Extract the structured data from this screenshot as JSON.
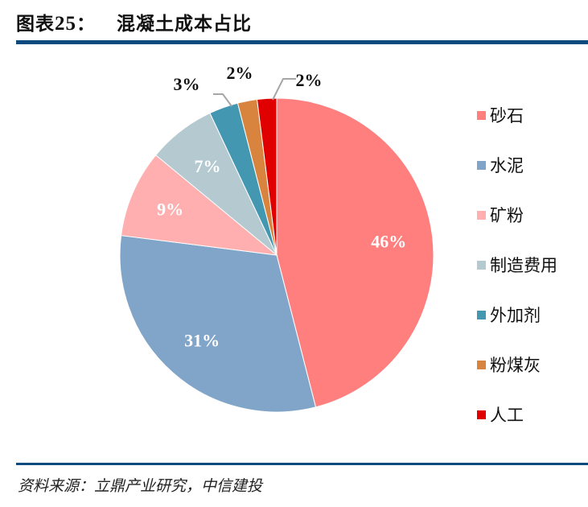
{
  "header": {
    "figure_label": "图表",
    "figure_number": "25",
    "separator": "：",
    "title": "混凝土成本占比"
  },
  "footer": {
    "source": "资料来源：立鼎产业研究，中信建投"
  },
  "chart_data": {
    "type": "pie",
    "title": "混凝土成本占比",
    "start_angle": "12 o'clock, clockwise",
    "legend_position": "right",
    "categories": [
      "砂石",
      "水泥",
      "矿粉",
      "制造费用",
      "外加剂",
      "粉煤灰",
      "人工"
    ],
    "values": [
      46,
      31,
      9,
      7,
      3,
      2,
      2
    ],
    "labels": [
      "46%",
      "31%",
      "9%",
      "7%",
      "3%",
      "2%",
      "2%"
    ],
    "colors": [
      "#ff7f7f",
      "#81a5c8",
      "#ffafaf",
      "#b4c9d0",
      "#4397b0",
      "#d9843e",
      "#e00000"
    ],
    "unit": "%"
  },
  "legend": {
    "items": [
      {
        "label": "砂石",
        "color": "#ff7f7f"
      },
      {
        "label": "水泥",
        "color": "#81a5c8"
      },
      {
        "label": "矿粉",
        "color": "#ffafaf"
      },
      {
        "label": "制造费用",
        "color": "#b4c9d0"
      },
      {
        "label": "外加剂",
        "color": "#4397b0"
      },
      {
        "label": "粉煤灰",
        "color": "#d9843e"
      },
      {
        "label": "人工",
        "color": "#e00000"
      }
    ]
  }
}
